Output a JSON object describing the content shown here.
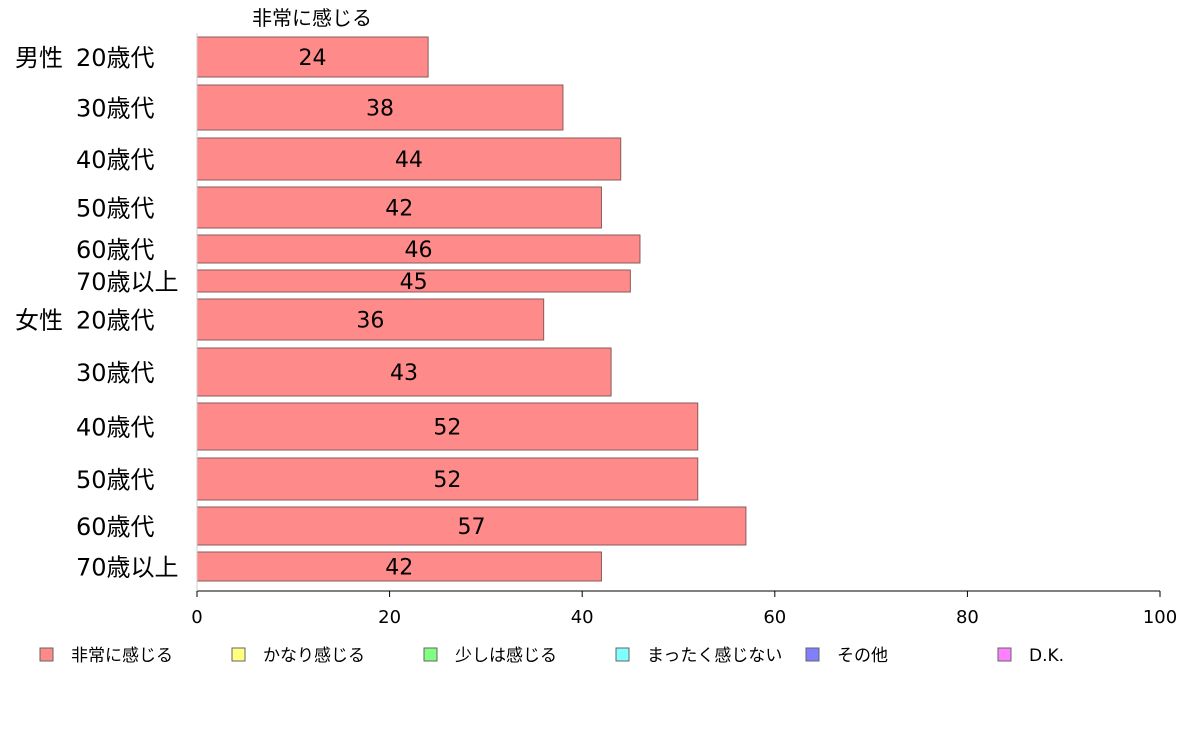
{
  "chart_data": {
    "type": "bar",
    "orientation": "horizontal",
    "series_header": "非常に感じる",
    "categories": [
      {
        "group": "男性",
        "label": "20歳代"
      },
      {
        "group": "",
        "label": "30歳代"
      },
      {
        "group": "",
        "label": "40歳代"
      },
      {
        "group": "",
        "label": "50歳代"
      },
      {
        "group": "",
        "label": "60歳代"
      },
      {
        "group": "",
        "label": "70歳以上"
      },
      {
        "group": "女性",
        "label": "20歳代"
      },
      {
        "group": "",
        "label": "30歳代"
      },
      {
        "group": "",
        "label": "40歳代"
      },
      {
        "group": "",
        "label": "50歳代"
      },
      {
        "group": "",
        "label": "60歳代"
      },
      {
        "group": "",
        "label": "70歳以上"
      }
    ],
    "series": [
      {
        "name": "非常に感じる",
        "color": "#ff8a8a",
        "values": [
          24,
          38,
          44,
          42,
          46,
          45,
          36,
          43,
          52,
          52,
          57,
          42
        ],
        "value_labels": [
          "24",
          "38",
          "44",
          "42",
          "46",
          "45",
          "36",
          "43",
          "52",
          "52",
          "57",
          "42"
        ]
      }
    ],
    "xlim": [
      0,
      100
    ],
    "xticks": [
      0,
      20,
      40,
      60,
      80,
      100
    ],
    "xtick_labels": [
      "0",
      "20",
      "40",
      "60",
      "80",
      "100"
    ],
    "grid": false,
    "legend_position": "bottom",
    "legend": [
      {
        "label": "非常に感じる",
        "color": "#ff8a8a"
      },
      {
        "label": "かなり感じる",
        "color": "#ffff80"
      },
      {
        "label": "少しは感じる",
        "color": "#80ff80"
      },
      {
        "label": "まったく感じない",
        "color": "#80ffff"
      },
      {
        "label": "その他",
        "color": "#8080ff"
      },
      {
        "label": "D.K.",
        "color": "#ff80ff"
      }
    ]
  }
}
